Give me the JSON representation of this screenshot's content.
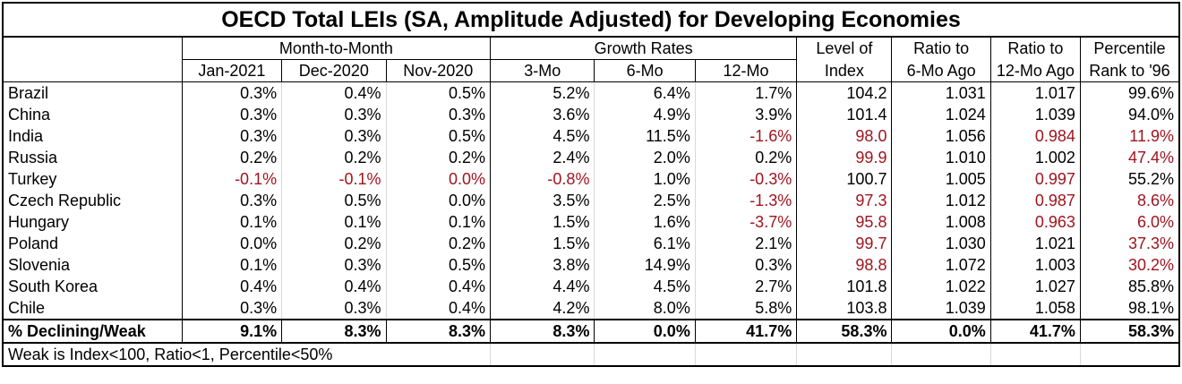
{
  "title": "OECD Total LEIs (SA, Amplitude Adjusted) for Developing Economies",
  "groups": {
    "mtm": "Month-to-Month",
    "growth": "Growth Rates",
    "level_top": "Level of",
    "level_bottom": "Index",
    "ratio6_top": "Ratio to",
    "ratio6_bottom": "6-Mo Ago",
    "ratio12_top": "Ratio to",
    "ratio12_bottom": "12-Mo Ago",
    "pct_top": "Percentile",
    "pct_bottom": "Rank to '96"
  },
  "columns": [
    "Jan-2021",
    "Dec-2020",
    "Nov-2020",
    "3-Mo",
    "6-Mo",
    "12-Mo"
  ],
  "rows": [
    {
      "country": "Brazil",
      "cells": [
        "0.3%",
        "0.4%",
        "0.5%",
        "5.2%",
        "6.4%",
        "1.7%",
        "104.2",
        "1.031",
        "1.017",
        "99.6%"
      ],
      "neg": [
        0,
        0,
        0,
        0,
        0,
        0,
        0,
        0,
        0,
        0
      ]
    },
    {
      "country": "China",
      "cells": [
        "0.3%",
        "0.3%",
        "0.3%",
        "3.6%",
        "4.9%",
        "3.9%",
        "101.4",
        "1.024",
        "1.039",
        "94.0%"
      ],
      "neg": [
        0,
        0,
        0,
        0,
        0,
        0,
        0,
        0,
        0,
        0
      ]
    },
    {
      "country": "India",
      "cells": [
        "0.3%",
        "0.3%",
        "0.5%",
        "4.5%",
        "11.5%",
        "-1.6%",
        "98.0",
        "1.056",
        "0.984",
        "11.9%"
      ],
      "neg": [
        0,
        0,
        0,
        0,
        0,
        1,
        1,
        0,
        1,
        1
      ]
    },
    {
      "country": "Russia",
      "cells": [
        "0.2%",
        "0.2%",
        "0.2%",
        "2.4%",
        "2.0%",
        "0.2%",
        "99.9",
        "1.010",
        "1.002",
        "47.4%"
      ],
      "neg": [
        0,
        0,
        0,
        0,
        0,
        0,
        1,
        0,
        0,
        1
      ]
    },
    {
      "country": "Turkey",
      "cells": [
        "-0.1%",
        "-0.1%",
        "0.0%",
        "-0.8%",
        "1.0%",
        "-0.3%",
        "100.7",
        "1.005",
        "0.997",
        "55.2%"
      ],
      "neg": [
        1,
        1,
        1,
        1,
        0,
        1,
        0,
        0,
        1,
        0
      ]
    },
    {
      "country": "Czech Republic",
      "cells": [
        "0.3%",
        "0.5%",
        "0.0%",
        "3.5%",
        "2.5%",
        "-1.3%",
        "97.3",
        "1.012",
        "0.987",
        "8.6%"
      ],
      "neg": [
        0,
        0,
        0,
        0,
        0,
        1,
        1,
        0,
        1,
        1
      ]
    },
    {
      "country": "Hungary",
      "cells": [
        "0.1%",
        "0.1%",
        "0.1%",
        "1.5%",
        "1.6%",
        "-3.7%",
        "95.8",
        "1.008",
        "0.963",
        "6.0%"
      ],
      "neg": [
        0,
        0,
        0,
        0,
        0,
        1,
        1,
        0,
        1,
        1
      ]
    },
    {
      "country": "Poland",
      "cells": [
        "0.0%",
        "0.2%",
        "0.2%",
        "1.5%",
        "6.1%",
        "2.1%",
        "99.7",
        "1.030",
        "1.021",
        "37.3%"
      ],
      "neg": [
        0,
        0,
        0,
        0,
        0,
        0,
        1,
        0,
        0,
        1
      ]
    },
    {
      "country": "Slovenia",
      "cells": [
        "0.1%",
        "0.3%",
        "0.5%",
        "3.8%",
        "14.9%",
        "0.3%",
        "98.8",
        "1.072",
        "1.003",
        "30.2%"
      ],
      "neg": [
        0,
        0,
        0,
        0,
        0,
        0,
        1,
        0,
        0,
        1
      ]
    },
    {
      "country": "South Korea",
      "cells": [
        "0.4%",
        "0.4%",
        "0.4%",
        "4.4%",
        "4.5%",
        "2.7%",
        "101.8",
        "1.022",
        "1.027",
        "85.8%"
      ],
      "neg": [
        0,
        0,
        0,
        0,
        0,
        0,
        0,
        0,
        0,
        0
      ]
    },
    {
      "country": "Chile",
      "cells": [
        "0.3%",
        "0.3%",
        "0.4%",
        "4.2%",
        "8.0%",
        "5.8%",
        "103.8",
        "1.039",
        "1.058",
        "98.1%"
      ],
      "neg": [
        0,
        0,
        0,
        0,
        0,
        0,
        0,
        0,
        0,
        0
      ]
    }
  ],
  "summary": {
    "label": "% Declining/Weak",
    "cells": [
      "9.1%",
      "8.3%",
      "8.3%",
      "8.3%",
      "0.0%",
      "41.7%",
      "58.3%",
      "0.0%",
      "41.7%",
      "58.3%"
    ]
  },
  "footnote": "Weak is Index<100, Ratio<1, Percentile<50%",
  "colors": {
    "negative": "#a0141e",
    "text": "#000000",
    "background": "#ffffff"
  }
}
